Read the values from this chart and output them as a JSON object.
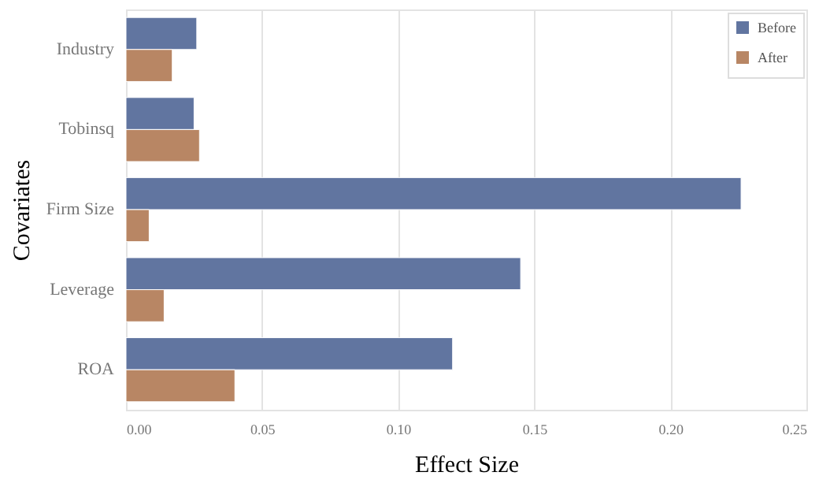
{
  "chart_data": {
    "type": "bar",
    "orientation": "horizontal",
    "xlabel": "Effect Size",
    "ylabel": "Covariates",
    "categories": [
      "Industry",
      "Tobinsq",
      "Firm Size",
      "Leverage",
      "ROA"
    ],
    "series": [
      {
        "name": "Before",
        "color": "#6175a0",
        "values": [
          0.026,
          0.025,
          0.226,
          0.145,
          0.12
        ]
      },
      {
        "name": "After",
        "color": "#b88664",
        "values": [
          0.017,
          0.027,
          0.0085,
          0.014,
          0.04
        ]
      }
    ],
    "xlim": [
      0,
      0.25
    ],
    "xticks": [
      {
        "value": 0,
        "label": "0.00"
      },
      {
        "value": 0.05,
        "label": "0.05"
      },
      {
        "value": 0.1,
        "label": "0.10"
      },
      {
        "value": 0.15,
        "label": "0.15"
      },
      {
        "value": 0.2,
        "label": "0.20"
      },
      {
        "value": 0.25,
        "label": "0.25"
      }
    ],
    "grid": "x",
    "legend": "top right"
  }
}
